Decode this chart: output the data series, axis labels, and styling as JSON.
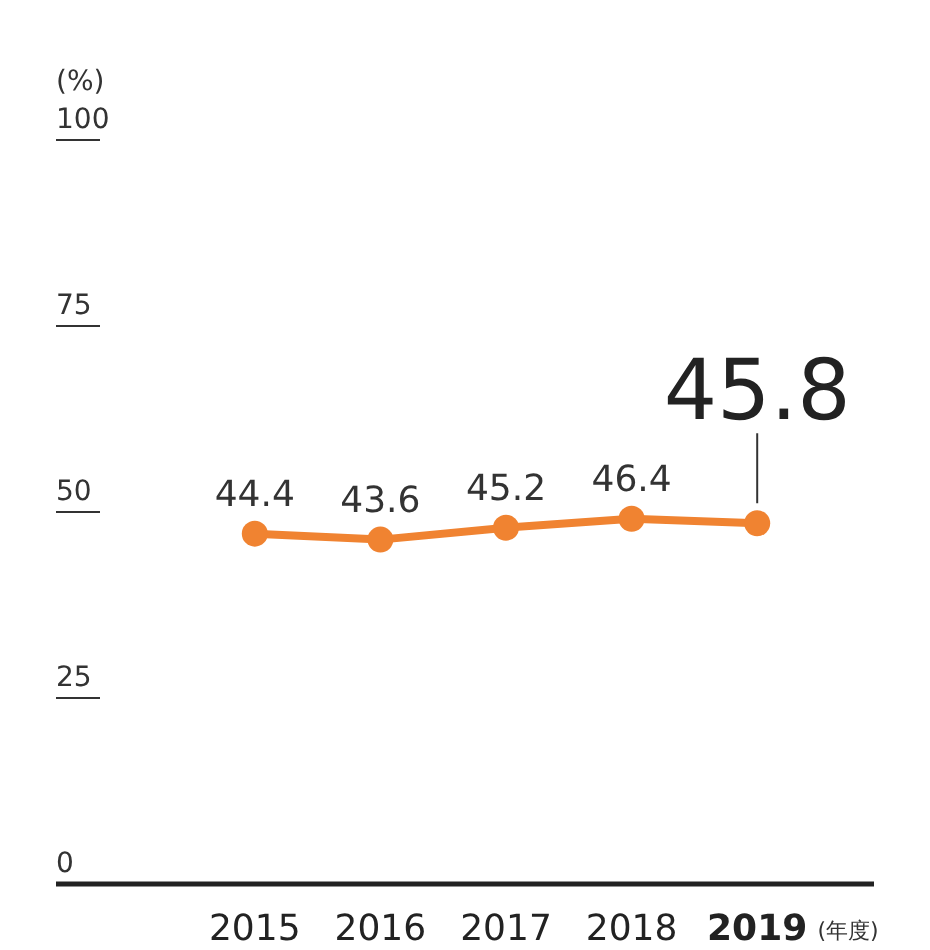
{
  "chart_data": {
    "type": "line",
    "ylabel": "(%)",
    "xlabel": "(年度)",
    "categories": [
      "2015",
      "2016",
      "2017",
      "2018",
      "2019"
    ],
    "series": [
      {
        "color": "#f08331",
        "values": [
          44.4,
          43.6,
          45.2,
          46.4,
          45.8
        ]
      }
    ],
    "ylim": [
      0,
      100
    ],
    "yticks": [
      0,
      25,
      50,
      75,
      100
    ],
    "data_labels": true,
    "marker": "circle",
    "line_style": "solid"
  }
}
